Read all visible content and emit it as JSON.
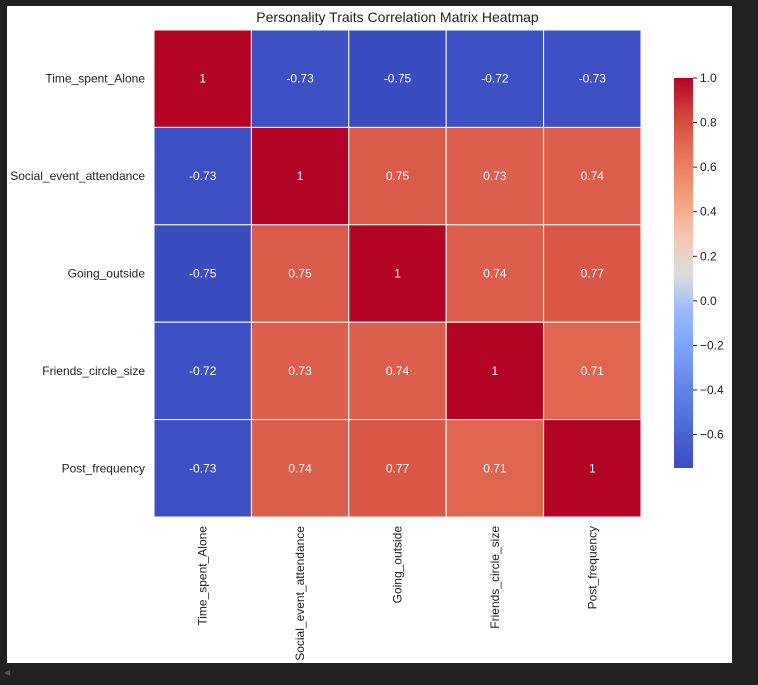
{
  "chart_data": {
    "type": "heatmap",
    "title": "Personality Traits Correlation Matrix Heatmap",
    "rows": [
      "Time_spent_Alone",
      "Social_event_attendance",
      "Going_outside",
      "Friends_circle_size",
      "Post_frequency"
    ],
    "columns": [
      "Time_spent_Alone",
      "Social_event_attendance",
      "Going_outside",
      "Friends_circle_size",
      "Post_frequency"
    ],
    "values": [
      [
        1,
        -0.73,
        -0.75,
        -0.72,
        -0.73
      ],
      [
        -0.73,
        1,
        0.75,
        0.73,
        0.74
      ],
      [
        -0.75,
        0.75,
        1,
        0.74,
        0.77
      ],
      [
        -0.72,
        0.73,
        0.74,
        1,
        0.71
      ],
      [
        -0.73,
        0.74,
        0.77,
        0.71,
        1
      ]
    ],
    "cell_labels": [
      [
        "1",
        "-0.73",
        "-0.75",
        "-0.72",
        "-0.73"
      ],
      [
        "-0.73",
        "1",
        "0.75",
        "0.73",
        "0.74"
      ],
      [
        "-0.75",
        "0.75",
        "1",
        "0.74",
        "0.77"
      ],
      [
        "-0.72",
        "0.73",
        "0.74",
        "1",
        "0.71"
      ],
      [
        "-0.73",
        "0.74",
        "0.77",
        "0.71",
        "1"
      ]
    ],
    "colormap": "coolwarm",
    "colorbar": {
      "range": [
        -0.75,
        1.0
      ],
      "ticks": [
        1.0,
        0.8,
        0.6,
        0.4,
        0.2,
        0.0,
        -0.2,
        -0.4,
        -0.6
      ],
      "tick_labels": [
        "1.0",
        "0.8",
        "0.6",
        "0.4",
        "0.2",
        "0.0",
        "−0.2",
        "−0.4",
        "−0.6"
      ]
    },
    "grid": false,
    "cell_border_color": "#ffffff",
    "x_tick_rotation": "vertical"
  },
  "colors": {
    "background": "#212121",
    "figure_background": "#ffffff",
    "text": "#222222"
  }
}
